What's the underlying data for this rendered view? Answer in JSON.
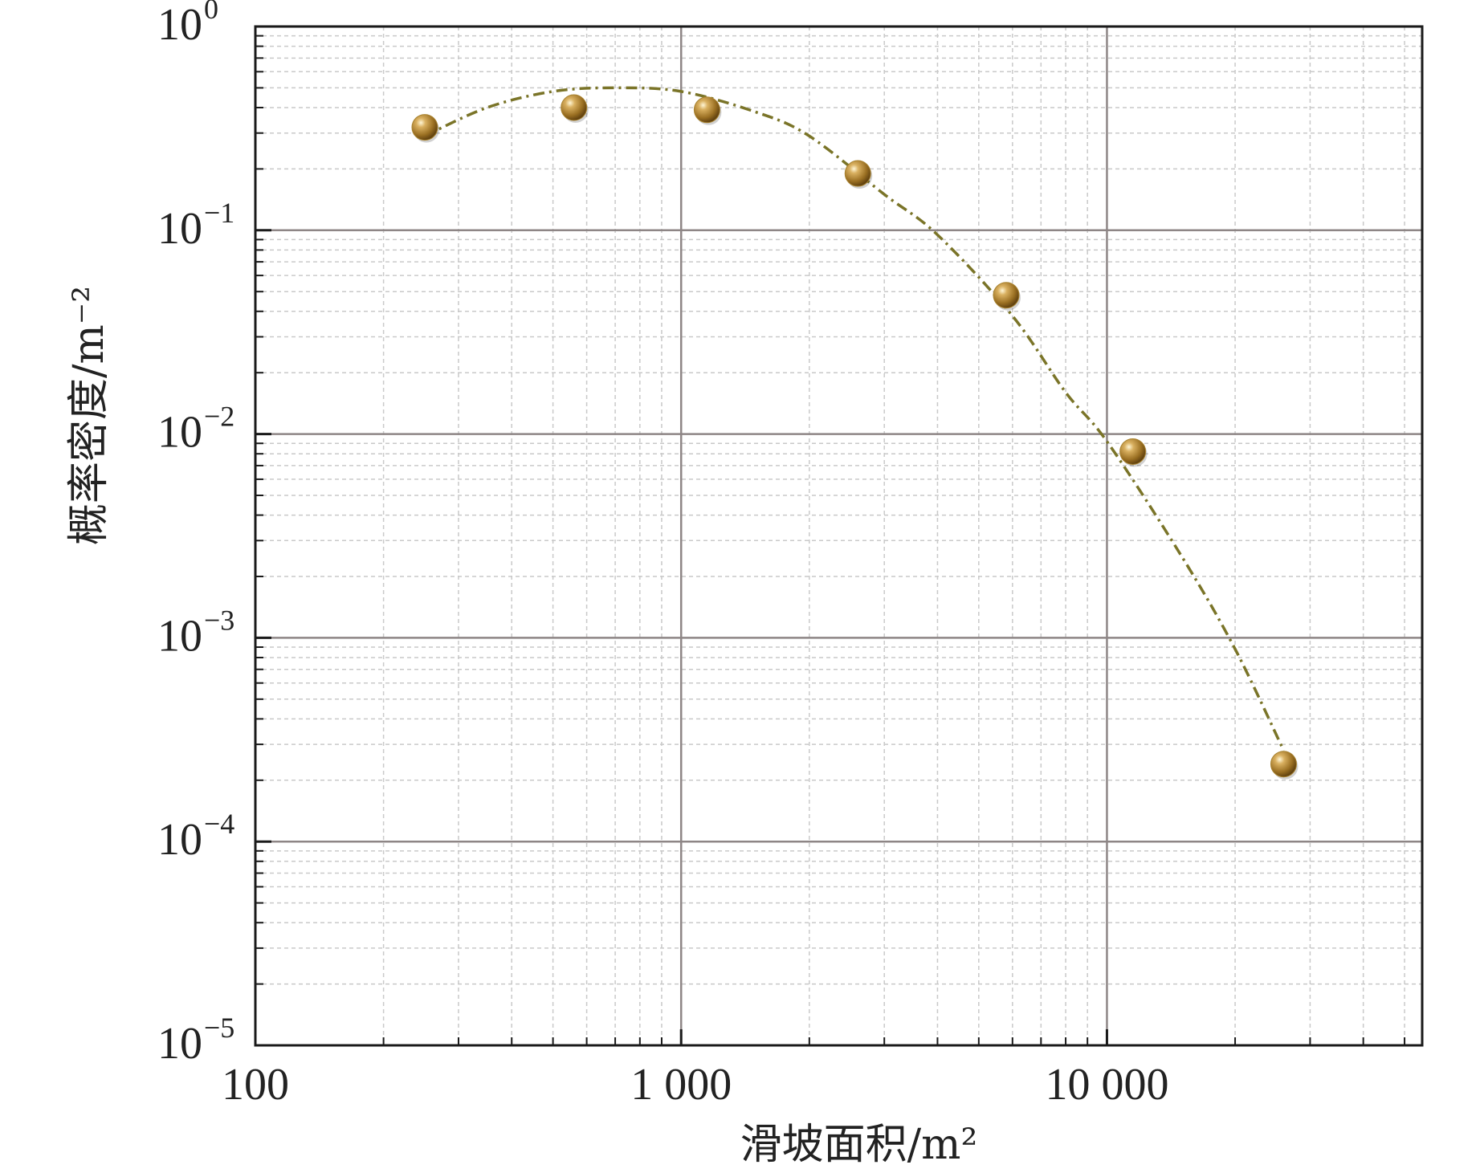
{
  "chart_data": {
    "type": "scatter",
    "x_scale": "log",
    "y_scale": "log",
    "xlabel": "滑坡面积/m²",
    "ylabel": "概率密度/m⁻²",
    "xlim": [
      100,
      55000
    ],
    "ylim": [
      1e-05,
      1
    ],
    "x_ticks": [
      {
        "value": 100,
        "label": "100"
      },
      {
        "value": 1000,
        "label": "1 000"
      },
      {
        "value": 10000,
        "label": "10 000"
      }
    ],
    "y_ticks": [
      {
        "value": 1,
        "base": "10",
        "exp": "0"
      },
      {
        "value": 0.1,
        "base": "10",
        "exp": "−1"
      },
      {
        "value": 0.01,
        "base": "10",
        "exp": "−2"
      },
      {
        "value": 0.001,
        "base": "10",
        "exp": "−3"
      },
      {
        "value": 0.0001,
        "base": "10",
        "exp": "−4"
      },
      {
        "value": 1e-05,
        "base": "10",
        "exp": "−5"
      }
    ],
    "grid": true,
    "series": [
      {
        "kind": "points",
        "marker_color": "#a8822e",
        "x": [
          250,
          560,
          1150,
          2600,
          5800,
          11500,
          26000
        ],
        "y": [
          0.32,
          0.4,
          0.39,
          0.19,
          0.048,
          0.0082,
          0.00024
        ]
      },
      {
        "kind": "fit-curve",
        "line_color": "#7a7428",
        "x": [
          250,
          350,
          500,
          700,
          1000,
          1500,
          2000,
          3000,
          4000,
          6000,
          8000,
          10000,
          15000,
          20000,
          26000
        ],
        "y": [
          0.29,
          0.4,
          0.48,
          0.5,
          0.48,
          0.38,
          0.29,
          0.15,
          0.095,
          0.038,
          0.016,
          0.0092,
          0.0025,
          0.00088,
          0.00028
        ]
      }
    ]
  }
}
